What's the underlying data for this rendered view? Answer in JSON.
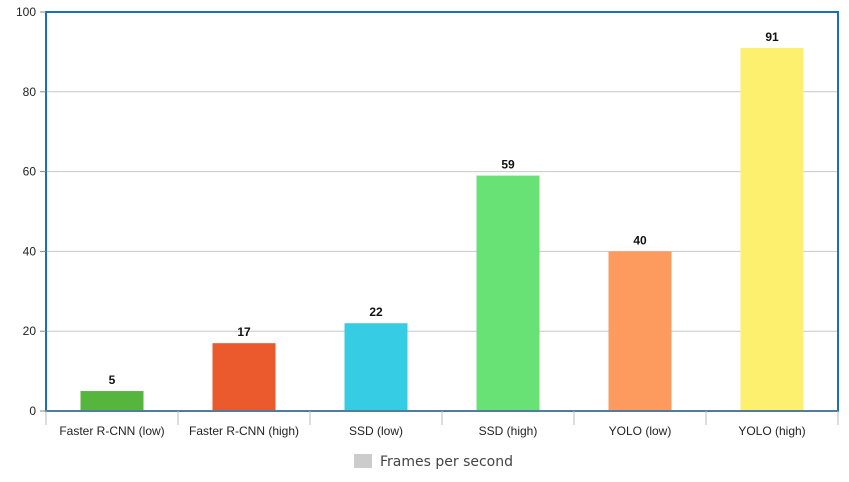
{
  "chart_data": {
    "type": "bar",
    "categories": [
      "Faster R-CNN (low)",
      "Faster R-CNN (high)",
      "SSD (low)",
      "SSD (high)",
      "YOLO (low)",
      "YOLO (high)"
    ],
    "values": [
      5,
      17,
      22,
      59,
      40,
      91
    ],
    "data_labels": [
      "5",
      "17",
      "22",
      "59",
      "40",
      "91"
    ],
    "bar_colors": [
      "#55b53c",
      "#eb5a2d",
      "#36cde4",
      "#68e274",
      "#fd9a5d",
      "#fdf06e"
    ],
    "ylim": [
      0,
      100
    ],
    "yticks": [
      0,
      20,
      40,
      60,
      80,
      100
    ],
    "ytick_labels": [
      "0",
      "20",
      "40",
      "60",
      "80",
      "100"
    ],
    "grid": true,
    "frame_color": "#1a6fb5",
    "grid_color": "#c8c8c8",
    "legend": {
      "position": "bottom-center",
      "entries": [
        {
          "label": "Frames per second",
          "color": "#cccccc"
        }
      ]
    }
  }
}
